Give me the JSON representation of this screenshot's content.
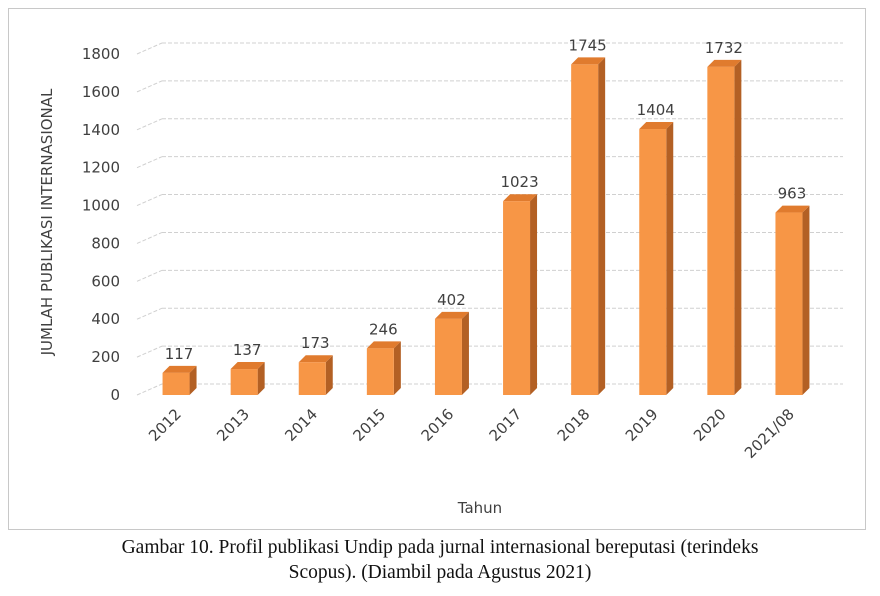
{
  "chart_data": {
    "type": "bar",
    "style": "3d-column",
    "categories": [
      "2012",
      "2013",
      "2014",
      "2015",
      "2016",
      "2017",
      "2018",
      "2019",
      "2020",
      "2021/08"
    ],
    "values": [
      117,
      137,
      173,
      246,
      402,
      1023,
      1745,
      1404,
      1732,
      963
    ],
    "data_labels": [
      "117",
      "137",
      "173",
      "246",
      "402",
      "1023",
      "1745",
      "1404",
      "1732",
      "963"
    ],
    "xlabel": "Tahun",
    "ylabel": "JUMLAH PUBLIKASI INTERNASIONAL",
    "ylim": [
      0,
      1800
    ],
    "yticks": [
      "0",
      "200",
      "400",
      "600",
      "800",
      "1000",
      "1200",
      "1400",
      "1600",
      "1800"
    ],
    "grid": "horizontal dashed",
    "bar_color": "#f79646",
    "bar_side_color": "#b36024",
    "bar_top_color": "#e07b2e"
  },
  "caption": {
    "line1": "Gambar 10. Profil publikasi Undip pada jurnal internasional bereputasi (terindeks",
    "line2": "Scopus). (Diambil pada Agustus 2021)"
  }
}
